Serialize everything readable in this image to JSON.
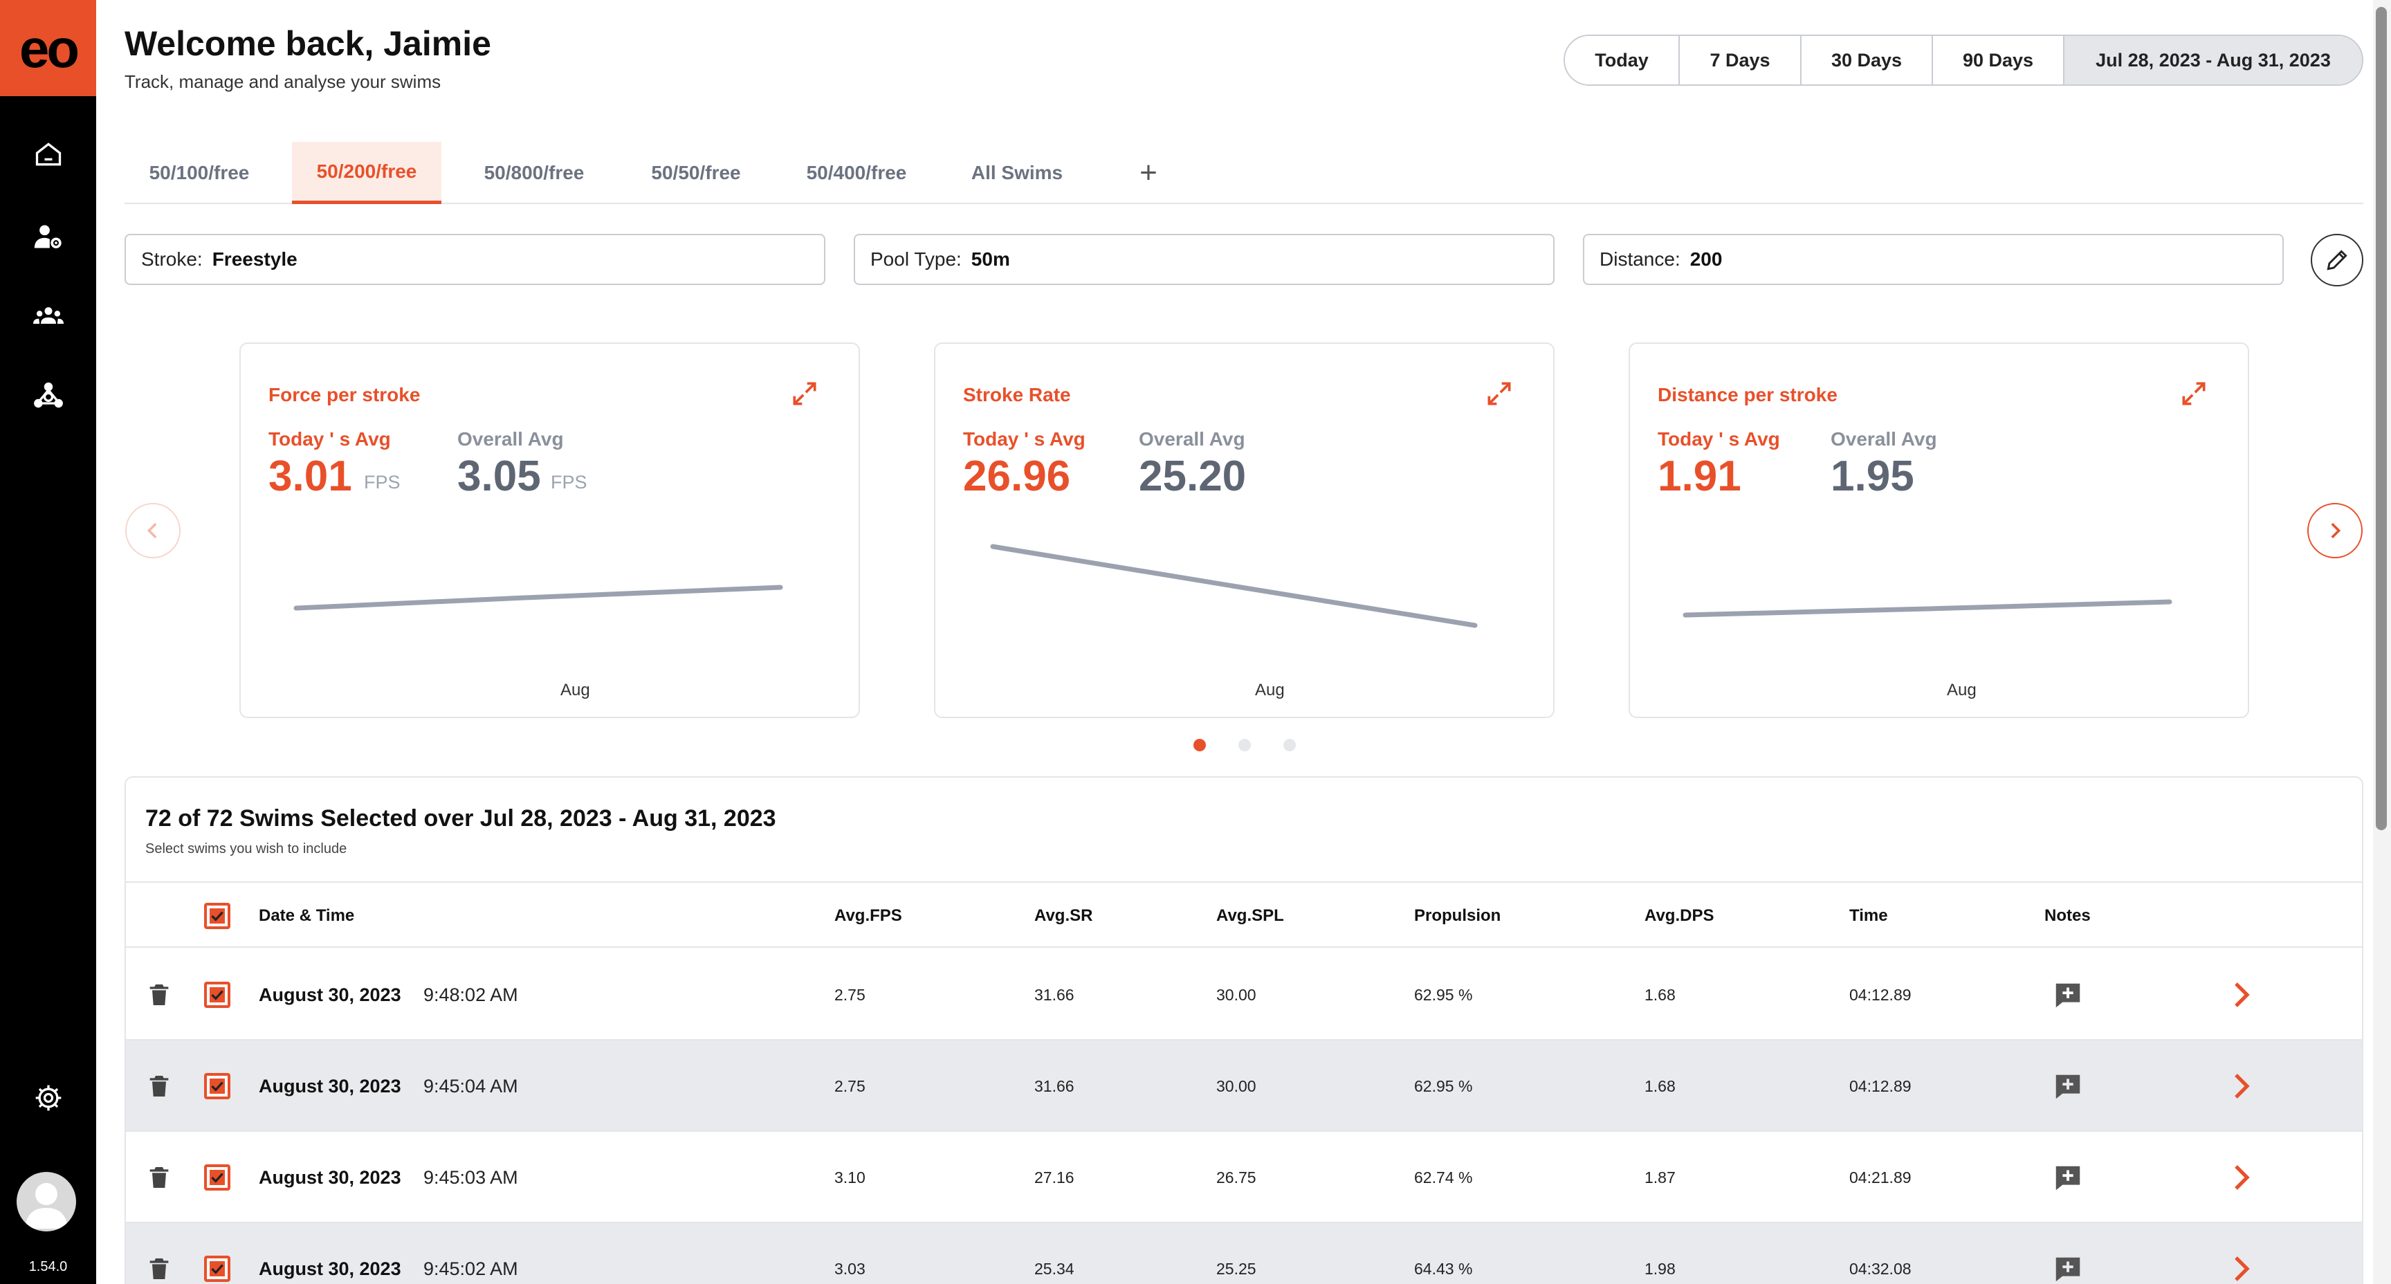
{
  "app": {
    "logo": "eo",
    "version": "1.54.0"
  },
  "nav": [
    {
      "name": "home-icon"
    },
    {
      "name": "user-settings-icon"
    },
    {
      "name": "team-icon"
    },
    {
      "name": "network-icon"
    }
  ],
  "header": {
    "welcome": "Welcome back, Jaimie",
    "subtitle": "Track, manage and analyse your swims"
  },
  "date_ranges": [
    "Today",
    "7 Days",
    "30 Days",
    "90 Days",
    "Jul 28, 2023 - Aug 31, 2023"
  ],
  "date_range_selected": "Jul 28, 2023 - Aug 31, 2023",
  "tabs": [
    "50/100/free",
    "50/200/free",
    "50/800/free",
    "50/50/free",
    "50/400/free",
    "All Swims",
    "+"
  ],
  "tab_selected": "50/200/free",
  "filters": {
    "stroke": {
      "label": "Stroke:",
      "value": "Freestyle"
    },
    "pool": {
      "label": "Pool Type:",
      "value": "50m"
    },
    "distance": {
      "label": "Distance:",
      "value": "200"
    }
  },
  "cards": [
    {
      "title": "Force per stroke",
      "today_label": "Today ' s Avg",
      "today_value": "3.01",
      "overall_label": "Overall Avg",
      "overall_value": "3.05",
      "unit": "FPS",
      "x_label": "Aug"
    },
    {
      "title": "Stroke Rate",
      "today_label": "Today ' s Avg",
      "today_value": "26.96",
      "overall_label": "Overall Avg",
      "overall_value": "25.20",
      "unit": "",
      "x_label": "Aug"
    },
    {
      "title": "Distance per stroke",
      "today_label": "Today ' s Avg",
      "today_value": "1.91",
      "overall_label": "Overall Avg",
      "overall_value": "1.95",
      "unit": "",
      "x_label": "Aug"
    }
  ],
  "carousel": {
    "page": 1,
    "pages": 3
  },
  "swims": {
    "title": "72 of 72 Swims Selected over Jul 28, 2023 - Aug 31, 2023",
    "subtitle": "Select swims you wish to include",
    "columns": [
      "Date & Time",
      "Avg.FPS",
      "Avg.SR",
      "Avg.SPL",
      "Propulsion",
      "Avg.DPS",
      "Time",
      "Notes"
    ],
    "rows": [
      {
        "date": "August 30, 2023",
        "time": "9:48:02 AM",
        "fps": "2.75",
        "sr": "31.66",
        "spl": "30.00",
        "prop": "62.95 %",
        "dps": "1.68",
        "duration": "04:12.89"
      },
      {
        "date": "August 30, 2023",
        "time": "9:45:04 AM",
        "fps": "2.75",
        "sr": "31.66",
        "spl": "30.00",
        "prop": "62.95 %",
        "dps": "1.68",
        "duration": "04:12.89"
      },
      {
        "date": "August 30, 2023",
        "time": "9:45:03 AM",
        "fps": "3.10",
        "sr": "27.16",
        "spl": "26.75",
        "prop": "62.74 %",
        "dps": "1.87",
        "duration": "04:21.89"
      },
      {
        "date": "August 30, 2023",
        "time": "9:45:02 AM",
        "fps": "3.03",
        "sr": "25.34",
        "spl": "25.25",
        "prop": "64.43 %",
        "dps": "1.98",
        "duration": "04:32.08"
      }
    ]
  },
  "colors": {
    "accent": "#e8502a",
    "sparkline": "#9ca1b0",
    "row_alt": "#e9eaed"
  }
}
